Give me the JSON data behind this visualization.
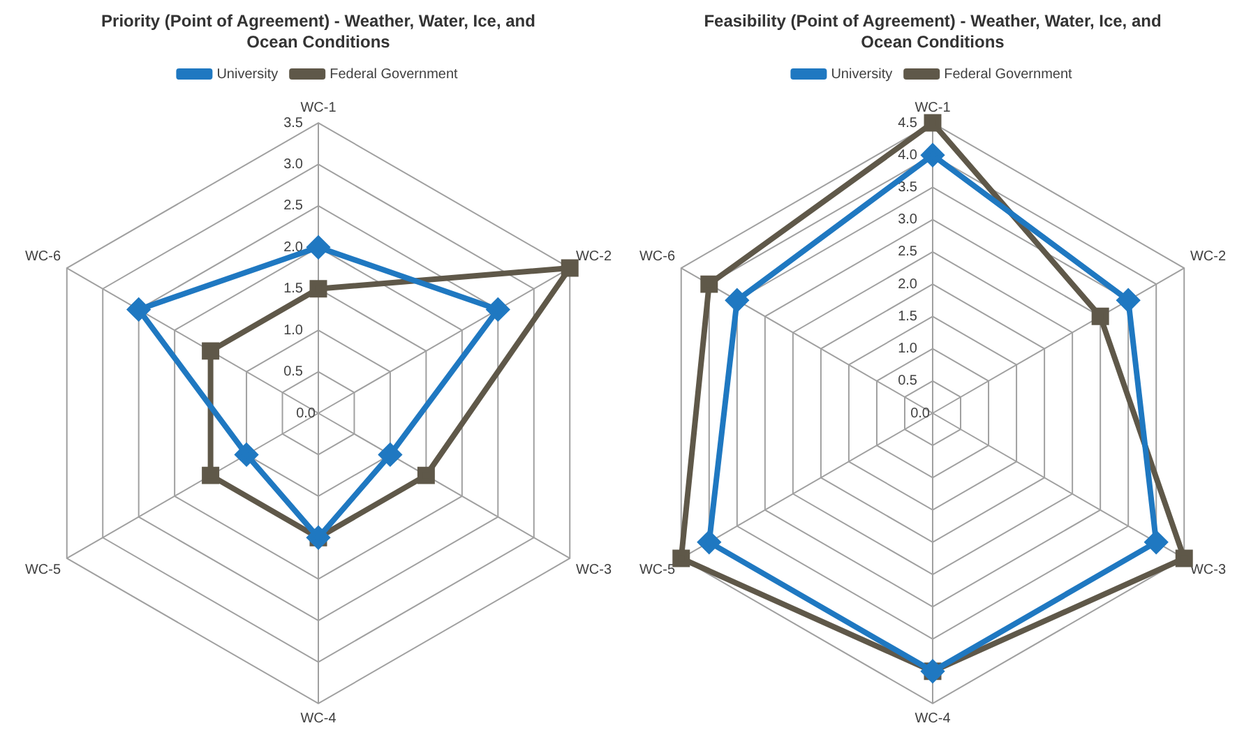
{
  "chart_data": [
    {
      "type": "radar",
      "title": "Priority (Point of Agreement)  - Weather, Water, Ice, and Ocean Conditions",
      "categories": [
        "WC-1",
        "WC-2",
        "WC-3",
        "WC-4",
        "WC-5",
        "WC-6"
      ],
      "series": [
        {
          "name": "University",
          "color": "#1f78c1",
          "marker": "diamond",
          "values": [
            2.0,
            2.5,
            1.0,
            1.5,
            1.0,
            2.5
          ]
        },
        {
          "name": "Federal Government",
          "color": "#5f5849",
          "marker": "square",
          "values": [
            1.5,
            3.5,
            1.5,
            1.5,
            1.5,
            1.5
          ]
        }
      ],
      "ylim": [
        0,
        3.5
      ],
      "yticks": [
        {
          "value": 0,
          "label": "0.0"
        },
        {
          "value": 0.5,
          "label": "0.5"
        },
        {
          "value": 1,
          "label": "1.0"
        },
        {
          "value": 1.5,
          "label": "1.5"
        },
        {
          "value": 2,
          "label": "2.0"
        },
        {
          "value": 2.5,
          "label": "2.5"
        },
        {
          "value": 3,
          "label": "3.0"
        },
        {
          "value": 3.5,
          "label": "3.5"
        }
      ],
      "grid": true,
      "legend": "top"
    },
    {
      "type": "radar",
      "title": "Feasibility (Point of Agreement)  - Weather, Water, Ice, and Ocean Conditions",
      "categories": [
        "WC-1",
        "WC-2",
        "WC-3",
        "WC-4",
        "WC-5",
        "WC-6"
      ],
      "series": [
        {
          "name": "University",
          "color": "#1f78c1",
          "marker": "diamond",
          "values": [
            4.0,
            3.5,
            4.0,
            4.0,
            4.0,
            3.5
          ]
        },
        {
          "name": "Federal Government",
          "color": "#5f5849",
          "marker": "square",
          "values": [
            4.5,
            3.0,
            4.5,
            4.0,
            4.5,
            4.0
          ]
        }
      ],
      "ylim": [
        0,
        4.5
      ],
      "yticks": [
        {
          "value": 0,
          "label": "0.0"
        },
        {
          "value": 0.5,
          "label": "0.5"
        },
        {
          "value": 1,
          "label": "1.0"
        },
        {
          "value": 1.5,
          "label": "1.5"
        },
        {
          "value": 2,
          "label": "2.0"
        },
        {
          "value": 2.5,
          "label": "2.5"
        },
        {
          "value": 3,
          "label": "3.0"
        },
        {
          "value": 3.5,
          "label": "3.5"
        },
        {
          "value": 4,
          "label": "4.0"
        },
        {
          "value": 4.5,
          "label": "4.5"
        }
      ],
      "grid": true,
      "legend": "top"
    }
  ]
}
